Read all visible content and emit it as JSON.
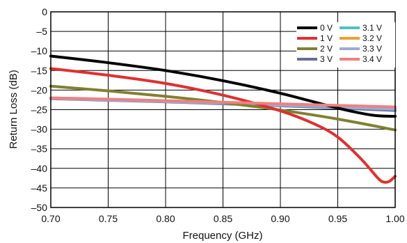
{
  "chart_data": {
    "type": "line",
    "title": "",
    "xlabel": "Frequency (GHz)",
    "ylabel": "Return Loss (dB)",
    "xlim": [
      0.7,
      1.0
    ],
    "ylim": [
      -50,
      0
    ],
    "x_ticks": [
      0.7,
      0.75,
      0.8,
      0.85,
      0.9,
      0.95,
      1.0
    ],
    "x_tick_labels": [
      "0.70",
      "0.75",
      "0.80",
      "0.85",
      "0.90",
      "0.95",
      "1.00"
    ],
    "y_ticks": [
      0,
      -5,
      -10,
      -15,
      -20,
      -25,
      -30,
      -35,
      -40,
      -45,
      -50
    ],
    "y_tick_labels": [
      "0",
      "–5",
      "–10",
      "–15",
      "–20",
      "–25",
      "–30",
      "–35",
      "–40",
      "–45",
      "–50"
    ],
    "grid": true,
    "legend_position": "top-right",
    "series": [
      {
        "name": "3 V",
        "color": "#6a6a98",
        "x": [
          0.7,
          0.75,
          0.8,
          0.85,
          0.9,
          0.95,
          1.0
        ],
        "y": [
          -22.2,
          -22.6,
          -23.0,
          -23.5,
          -24.0,
          -24.6,
          -25.2
        ]
      },
      {
        "name": "3.1 V",
        "color": "#4fc0c0",
        "x": [
          0.7,
          0.75,
          0.8,
          0.85,
          0.9,
          0.95,
          1.0
        ],
        "y": [
          -22.1,
          -22.5,
          -22.9,
          -23.4,
          -23.9,
          -24.4,
          -24.9
        ]
      },
      {
        "name": "3.2 V",
        "color": "#f0a030",
        "x": [
          0.7,
          0.75,
          0.8,
          0.85,
          0.9,
          0.95,
          1.0
        ],
        "y": [
          -22.0,
          -22.4,
          -22.8,
          -23.2,
          -23.7,
          -24.2,
          -24.7
        ]
      },
      {
        "name": "3.3 V",
        "color": "#a0a8d8",
        "x": [
          0.7,
          0.75,
          0.8,
          0.85,
          0.9,
          0.95,
          1.0
        ],
        "y": [
          -22.1,
          -22.5,
          -22.9,
          -23.3,
          -23.8,
          -24.3,
          -24.8
        ]
      },
      {
        "name": "2 V",
        "color": "#808030",
        "x": [
          0.7,
          0.75,
          0.8,
          0.85,
          0.9,
          0.95,
          1.0
        ],
        "y": [
          -19.0,
          -20.2,
          -21.6,
          -23.2,
          -25.1,
          -27.4,
          -30.2
        ]
      },
      {
        "name": "0 V",
        "color": "#000000",
        "x": [
          0.7,
          0.75,
          0.8,
          0.85,
          0.9,
          0.95,
          0.98,
          1.0
        ],
        "y": [
          -11.3,
          -13.0,
          -15.0,
          -17.6,
          -20.8,
          -24.6,
          -26.4,
          -26.7
        ]
      },
      {
        "name": "1 V",
        "color": "#e03030",
        "x": [
          0.7,
          0.75,
          0.8,
          0.85,
          0.9,
          0.93,
          0.95,
          0.97,
          0.985,
          0.99,
          0.995,
          1.0
        ],
        "y": [
          -14.5,
          -16.2,
          -18.3,
          -21.3,
          -25.3,
          -28.7,
          -32.0,
          -37.5,
          -42.5,
          -43.5,
          -43.3,
          -42.0
        ]
      },
      {
        "name": "3.4 V",
        "color": "#f08080",
        "x": [
          0.7,
          0.75,
          0.8,
          0.85,
          0.9,
          0.95,
          1.0
        ],
        "y": [
          -22.0,
          -22.3,
          -22.7,
          -23.1,
          -23.5,
          -23.9,
          -24.3
        ]
      }
    ],
    "legend_columns": [
      [
        "0 V",
        "1 V",
        "2 V",
        "3 V"
      ],
      [
        "3.1 V",
        "3.2 V",
        "3.3 V",
        "3.4 V"
      ]
    ]
  }
}
